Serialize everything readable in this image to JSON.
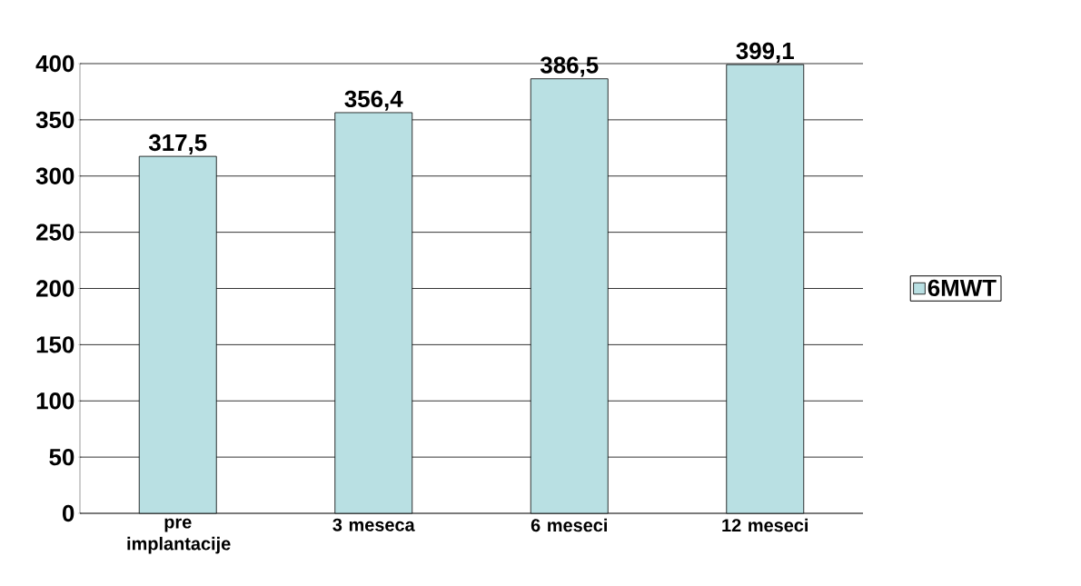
{
  "chart_data": {
    "type": "bar",
    "categories": [
      "pre implantacije",
      "3 meseca",
      "6 meseci",
      "12 meseci"
    ],
    "series": [
      {
        "name": "6MWT",
        "color": "#b9e0e3",
        "values": [
          317.5,
          356.4,
          386.5,
          399.1
        ],
        "value_labels": [
          "317,5",
          "356,4",
          "386,5",
          "399,1"
        ]
      }
    ],
    "ylim": [
      0,
      400
    ],
    "yticks": [
      0,
      50,
      100,
      150,
      200,
      250,
      300,
      350,
      400
    ],
    "grid": "y",
    "legend": "right"
  }
}
